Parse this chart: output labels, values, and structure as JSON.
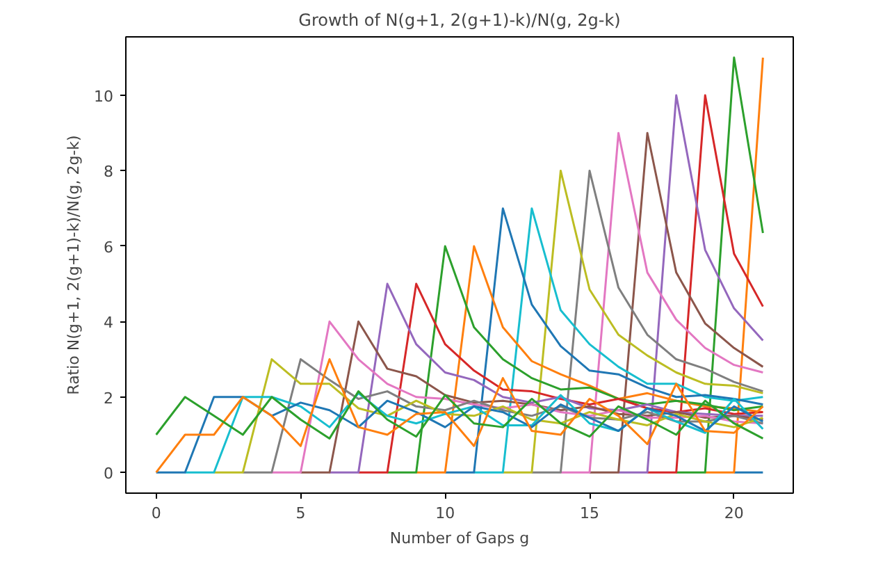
{
  "chart_data": {
    "type": "line",
    "title": "Growth of N(g+1, 2(g+1)-k)/N(g, 2g-k)",
    "xlabel": "Number of Gaps g",
    "ylabel": "Ratio N(g+1, 2(g+1)-k)/N(g, 2g-k)",
    "x": [
      0,
      1,
      2,
      3,
      4,
      5,
      6,
      7,
      8,
      9,
      10,
      11,
      12,
      13,
      14,
      15,
      16,
      17,
      18,
      19,
      20,
      21
    ],
    "xlim": [
      -1.05,
      22.05
    ],
    "ylim": [
      -0.55,
      11.55
    ],
    "xticks": [
      0,
      5,
      10,
      15,
      20
    ],
    "yticks": [
      0,
      2,
      4,
      6,
      8,
      10
    ],
    "grid": false,
    "marker": "none",
    "line_style": "solid",
    "series": [
      {
        "color": "#1f77b4",
        "values": [
          null,
          null,
          null,
          null,
          null,
          null,
          null,
          null,
          null,
          null,
          null,
          null,
          null,
          null,
          null,
          null,
          null,
          null,
          null,
          null,
          0,
          0
        ]
      },
      {
        "color": "#ff7f0e",
        "values": [
          null,
          null,
          null,
          null,
          null,
          null,
          null,
          null,
          null,
          null,
          null,
          null,
          null,
          null,
          null,
          null,
          null,
          null,
          null,
          0,
          0,
          11
        ]
      },
      {
        "color": "#2ca02c",
        "values": [
          null,
          null,
          null,
          null,
          null,
          null,
          null,
          null,
          null,
          null,
          null,
          null,
          null,
          null,
          null,
          null,
          null,
          null,
          0,
          0,
          11,
          6.35
        ]
      },
      {
        "color": "#d62728",
        "values": [
          null,
          null,
          null,
          null,
          null,
          null,
          null,
          null,
          null,
          null,
          null,
          null,
          null,
          null,
          null,
          null,
          null,
          0,
          0,
          10,
          5.8,
          4.4
        ]
      },
      {
        "color": "#9467bd",
        "values": [
          null,
          null,
          null,
          null,
          null,
          null,
          null,
          null,
          null,
          null,
          null,
          null,
          null,
          null,
          null,
          null,
          0,
          0,
          10,
          5.9,
          4.35,
          3.5
        ]
      },
      {
        "color": "#8c564b",
        "values": [
          null,
          null,
          null,
          null,
          null,
          null,
          null,
          null,
          null,
          null,
          null,
          null,
          null,
          null,
          null,
          0,
          0,
          9,
          5.3,
          3.95,
          3.3,
          2.8
        ]
      },
      {
        "color": "#e377c2",
        "values": [
          null,
          null,
          null,
          null,
          null,
          null,
          null,
          null,
          null,
          null,
          null,
          null,
          null,
          null,
          0,
          0,
          9,
          5.3,
          4.05,
          3.3,
          2.85,
          2.65
        ]
      },
      {
        "color": "#7f7f7f",
        "values": [
          null,
          null,
          null,
          null,
          null,
          null,
          null,
          null,
          null,
          null,
          null,
          null,
          null,
          0,
          0,
          8,
          4.9,
          3.65,
          3.0,
          2.75,
          2.4,
          2.15
        ]
      },
      {
        "color": "#bcbd22",
        "values": [
          null,
          null,
          null,
          null,
          null,
          null,
          null,
          null,
          null,
          null,
          null,
          null,
          0,
          0,
          8,
          4.85,
          3.65,
          3.1,
          2.65,
          2.35,
          2.3,
          2.1
        ]
      },
      {
        "color": "#17becf",
        "values": [
          null,
          null,
          null,
          null,
          null,
          null,
          null,
          null,
          null,
          null,
          null,
          0,
          0,
          7,
          4.3,
          3.4,
          2.8,
          2.35,
          2.35,
          2.0,
          1.9,
          2.0
        ]
      },
      {
        "color": "#1f77b4",
        "values": [
          null,
          null,
          null,
          null,
          null,
          null,
          null,
          null,
          null,
          null,
          0,
          0,
          7,
          4.45,
          3.35,
          2.7,
          2.6,
          2.25,
          2.0,
          2.05,
          1.95,
          1.8
        ]
      },
      {
        "color": "#ff7f0e",
        "values": [
          null,
          null,
          null,
          null,
          null,
          null,
          null,
          null,
          null,
          0,
          0,
          6,
          3.85,
          2.95,
          2.6,
          2.3,
          1.95,
          2.1,
          1.9,
          1.75,
          1.7,
          1.6
        ]
      },
      {
        "color": "#2ca02c",
        "values": [
          null,
          null,
          null,
          null,
          null,
          null,
          null,
          null,
          0,
          0,
          6,
          3.85,
          3.0,
          2.5,
          2.2,
          2.25,
          1.95,
          1.8,
          1.9,
          1.8,
          1.65,
          1.75
        ]
      },
      {
        "color": "#d62728",
        "values": [
          null,
          null,
          null,
          null,
          null,
          null,
          null,
          0,
          0,
          5,
          3.4,
          2.7,
          2.2,
          2.15,
          1.95,
          1.8,
          1.95,
          1.7,
          1.6,
          1.7,
          1.55,
          1.6
        ]
      },
      {
        "color": "#9467bd",
        "values": [
          null,
          null,
          null,
          null,
          null,
          null,
          0,
          0,
          5,
          3.4,
          2.65,
          2.45,
          2.0,
          1.85,
          2.0,
          1.7,
          1.65,
          1.8,
          1.6,
          1.55,
          1.5,
          1.5
        ]
      },
      {
        "color": "#8c564b",
        "values": [
          null,
          null,
          null,
          null,
          null,
          0,
          0,
          4,
          2.75,
          2.55,
          2.05,
          1.85,
          1.9,
          1.8,
          1.65,
          1.75,
          1.55,
          1.5,
          1.6,
          1.45,
          1.5,
          1.4
        ]
      },
      {
        "color": "#e377c2",
        "values": [
          null,
          null,
          null,
          null,
          0,
          0,
          4,
          3.0,
          2.35,
          2.0,
          1.95,
          1.8,
          1.7,
          1.8,
          1.6,
          1.5,
          1.65,
          1.45,
          1.45,
          1.5,
          1.35,
          1.3
        ]
      },
      {
        "color": "#7f7f7f",
        "values": [
          null,
          null,
          null,
          0,
          0,
          3,
          2.45,
          1.95,
          2.15,
          1.75,
          1.65,
          1.9,
          1.65,
          1.5,
          1.75,
          1.45,
          1.4,
          1.6,
          1.35,
          1.35,
          1.5,
          1.3
        ]
      },
      {
        "color": "#bcbd22",
        "values": [
          null,
          null,
          0,
          0,
          3,
          2.35,
          2.35,
          1.7,
          1.5,
          1.9,
          1.55,
          1.5,
          1.75,
          1.4,
          1.3,
          1.6,
          1.4,
          1.25,
          1.55,
          1.35,
          1.2,
          1.45
        ]
      },
      {
        "color": "#17becf",
        "values": [
          null,
          0,
          0,
          2,
          2,
          1.75,
          1.2,
          2.1,
          1.5,
          1.3,
          1.55,
          1.75,
          1.25,
          1.25,
          2.05,
          1.3,
          1.1,
          1.7,
          1.35,
          1.05,
          1.95,
          1.15
        ]
      },
      {
        "color": "#1f77b4",
        "values": [
          0,
          0,
          2,
          2,
          1.5,
          1.85,
          1.65,
          1.2,
          1.9,
          1.6,
          1.2,
          1.75,
          1.6,
          1.2,
          1.8,
          1.45,
          1.1,
          1.7,
          1.5,
          1.1,
          1.75,
          1.35
        ]
      },
      {
        "color": "#ff7f0e",
        "values": [
          0,
          1,
          1,
          2,
          1.5,
          0.7,
          3.0,
          1.2,
          1.0,
          1.55,
          1.6,
          0.7,
          2.5,
          1.1,
          1.0,
          1.95,
          1.5,
          0.75,
          2.35,
          1.1,
          1.05,
          1.75
        ]
      },
      {
        "color": "#2ca02c",
        "values": [
          1,
          2,
          1.5,
          1.0,
          2.0,
          1.4,
          0.9,
          2.15,
          1.4,
          0.95,
          2.05,
          1.3,
          1.2,
          1.95,
          1.3,
          0.95,
          1.75,
          1.4,
          1.0,
          1.9,
          1.3,
          0.9
        ]
      }
    ]
  }
}
